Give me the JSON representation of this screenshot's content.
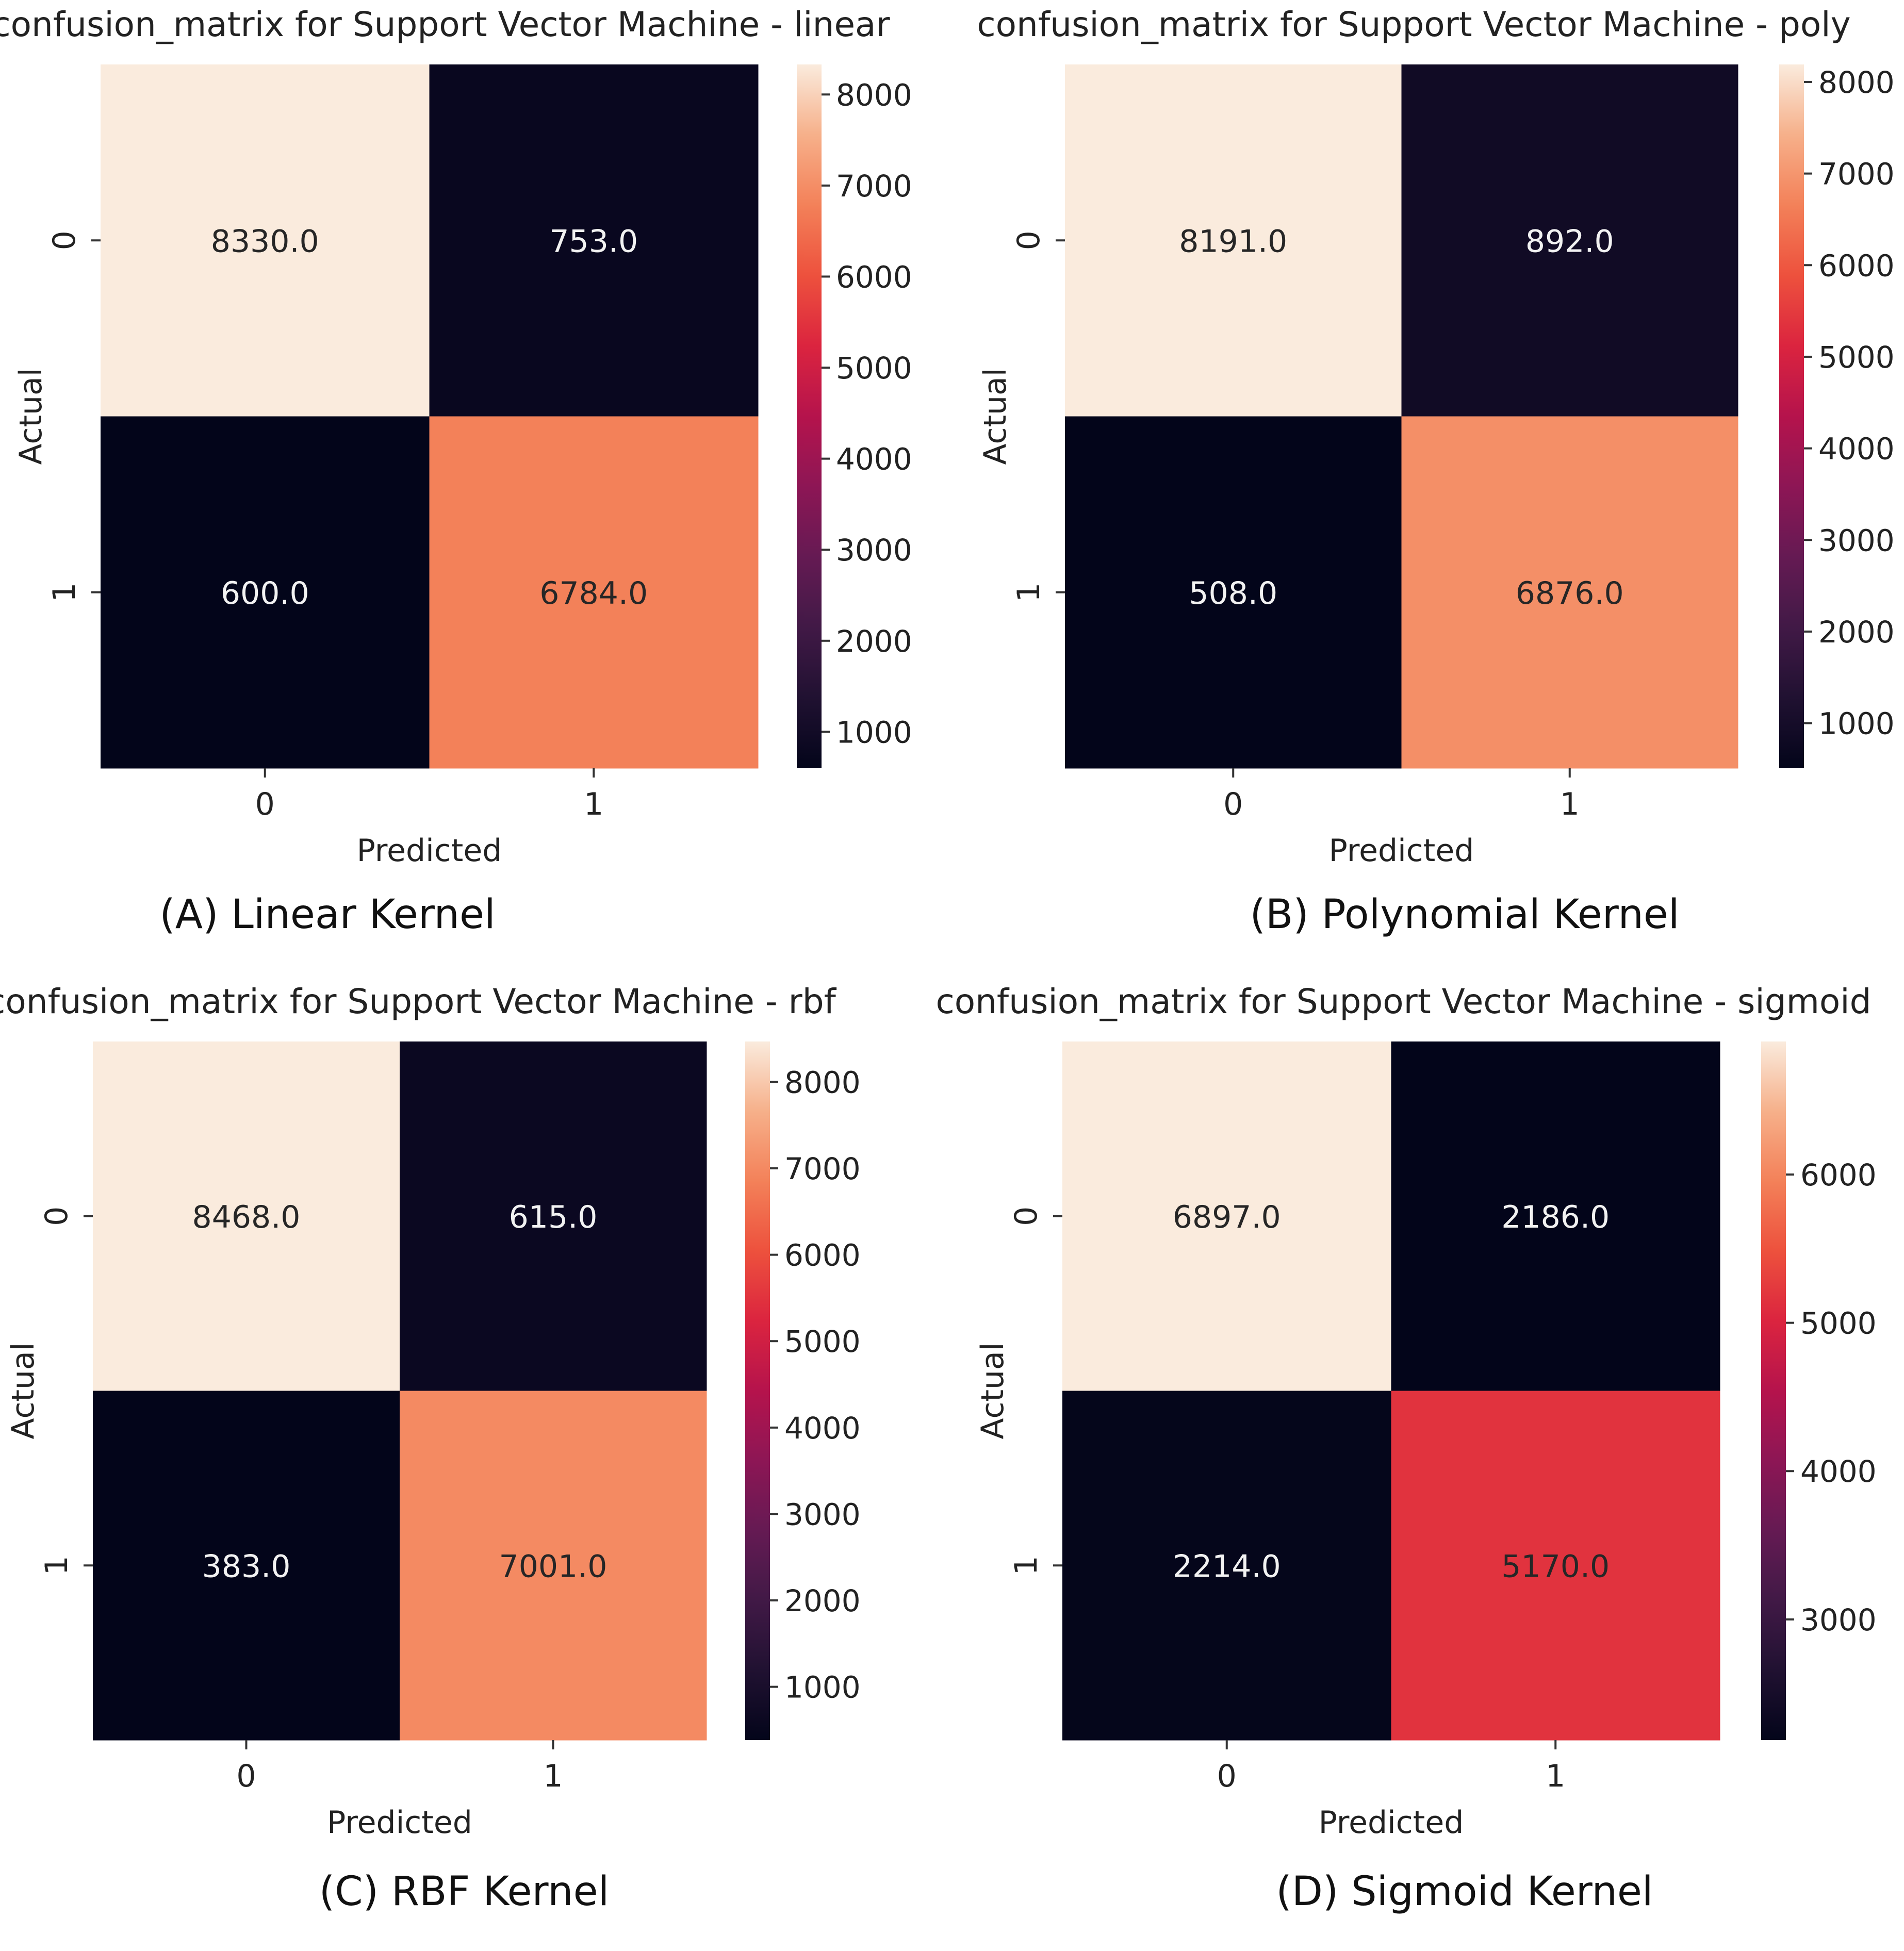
{
  "chart_data": [
    {
      "type": "heatmap",
      "title": "confusion_matrix for Support Vector Machine - linear",
      "caption": "(A) Linear Kernel",
      "xlabel": "Predicted",
      "ylabel": "Actual",
      "x_categories": [
        "0",
        "1"
      ],
      "y_categories": [
        "0",
        "1"
      ],
      "values": [
        [
          8330.0,
          753.0
        ],
        [
          600.0,
          6784.0
        ]
      ],
      "cell_labels": [
        [
          "8330.0",
          "753.0"
        ],
        [
          "600.0",
          "6784.0"
        ]
      ],
      "colorbar": {
        "range": [
          600,
          8330
        ],
        "ticks": [
          "1000",
          "2000",
          "3000",
          "4000",
          "5000",
          "6000",
          "7000",
          "8000"
        ]
      },
      "colormap": "rocket",
      "grid": false
    },
    {
      "type": "heatmap",
      "title": "confusion_matrix for Support Vector Machine - poly",
      "caption": "(B) Polynomial Kernel",
      "xlabel": "Predicted",
      "ylabel": "Actual",
      "x_categories": [
        "0",
        "1"
      ],
      "y_categories": [
        "0",
        "1"
      ],
      "values": [
        [
          8191.0,
          892.0
        ],
        [
          508.0,
          6876.0
        ]
      ],
      "cell_labels": [
        [
          "8191.0",
          "892.0"
        ],
        [
          "508.0",
          "6876.0"
        ]
      ],
      "colorbar": {
        "range": [
          508,
          8191
        ],
        "ticks": [
          "1000",
          "2000",
          "3000",
          "4000",
          "5000",
          "6000",
          "7000",
          "8000"
        ]
      },
      "colormap": "rocket",
      "grid": false
    },
    {
      "type": "heatmap",
      "title": "confusion_matrix for Support Vector Machine - rbf",
      "caption": "(C) RBF Kernel",
      "xlabel": "Predicted",
      "ylabel": "Actual",
      "x_categories": [
        "0",
        "1"
      ],
      "y_categories": [
        "0",
        "1"
      ],
      "values": [
        [
          8468.0,
          615.0
        ],
        [
          383.0,
          7001.0
        ]
      ],
      "cell_labels": [
        [
          "8468.0",
          "615.0"
        ],
        [
          "383.0",
          "7001.0"
        ]
      ],
      "colorbar": {
        "range": [
          383,
          8468
        ],
        "ticks": [
          "1000",
          "2000",
          "3000",
          "4000",
          "5000",
          "6000",
          "7000",
          "8000"
        ]
      },
      "colormap": "rocket",
      "grid": false
    },
    {
      "type": "heatmap",
      "title": "confusion_matrix for Support Vector Machine - sigmoid",
      "caption": "(D) Sigmoid Kernel",
      "xlabel": "Predicted",
      "ylabel": "Actual",
      "x_categories": [
        "0",
        "1"
      ],
      "y_categories": [
        "0",
        "1"
      ],
      "values": [
        [
          6897.0,
          2186.0
        ],
        [
          2214.0,
          5170.0
        ]
      ],
      "cell_labels": [
        [
          "6897.0",
          "2186.0"
        ],
        [
          "2214.0",
          "5170.0"
        ]
      ],
      "colorbar": {
        "range": [
          2186,
          6897
        ],
        "ticks": [
          "3000",
          "4000",
          "5000",
          "6000"
        ]
      },
      "colormap": "rocket",
      "grid": false
    }
  ]
}
